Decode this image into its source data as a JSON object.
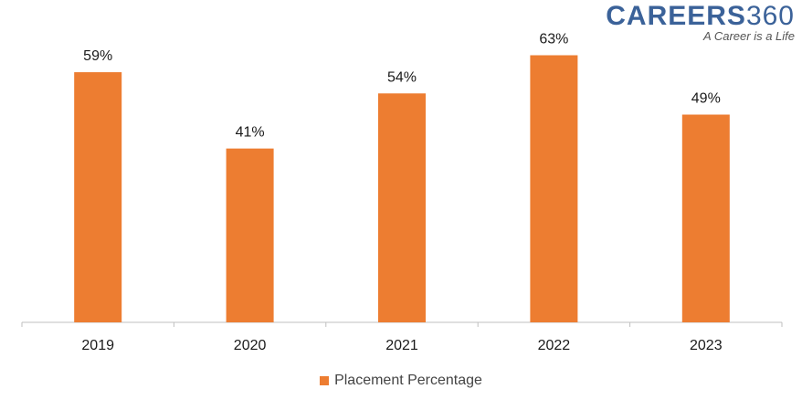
{
  "brand": {
    "name": "CAREERS",
    "number": "360",
    "tagline": "A Career is a Life"
  },
  "colors": {
    "bar": "#ED7D31",
    "axis": "#BFBFBF"
  },
  "chart_data": {
    "type": "bar",
    "title": "",
    "xlabel": "",
    "ylabel": "",
    "categories": [
      "2019",
      "2020",
      "2021",
      "2022",
      "2023"
    ],
    "series": [
      {
        "name": "Placement Percentage",
        "values": [
          59,
          41,
          54,
          63,
          49
        ],
        "labels": [
          "59%",
          "41%",
          "54%",
          "63%",
          "49%"
        ]
      }
    ],
    "ylim": [
      0,
      70
    ],
    "grid": false,
    "legend_position": "bottom"
  }
}
